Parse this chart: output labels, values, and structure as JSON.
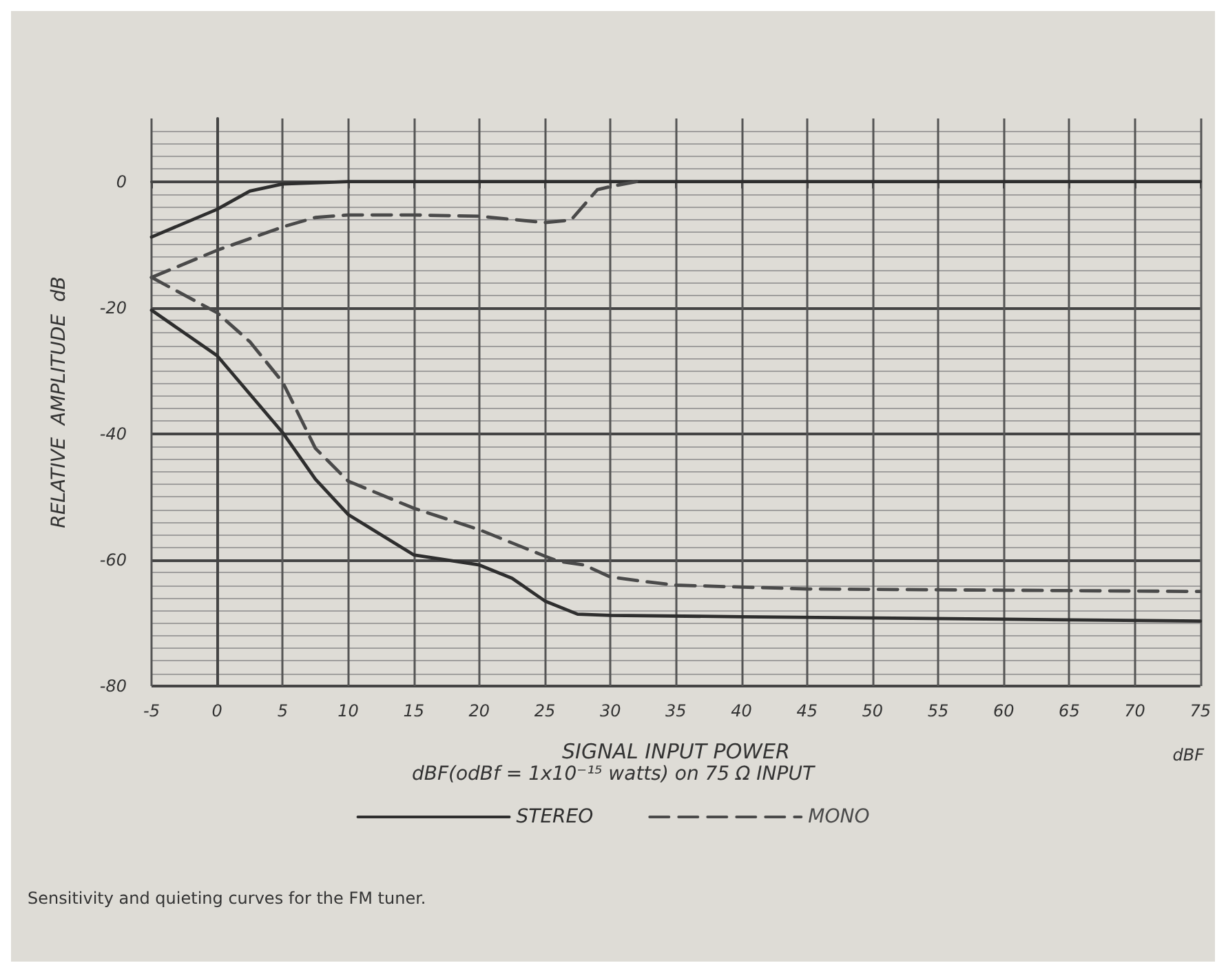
{
  "chart_data": {
    "type": "line",
    "xlabel": "SIGNAL INPUT POWER",
    "ylabel": "RELATIVE  AMPLITUDE  dB",
    "xlim": [
      -5,
      75
    ],
    "xticks": [
      -5,
      0,
      5,
      10,
      15,
      20,
      25,
      30,
      35,
      40,
      45,
      50,
      55,
      60,
      65,
      70,
      75
    ],
    "ylim": [
      -80,
      10
    ],
    "yticks": [
      -80,
      -60,
      -40,
      -20,
      0
    ],
    "grid": true,
    "legend": "bottom",
    "marker": "none",
    "annotations": [
      "dBF",
      "dBF(odBf = 1x10⁻¹⁵ watts) on 75 Ω INPUT",
      "Sensitivity and quieting curves for the FM tuner."
    ],
    "series": [
      {
        "name": "STEREO",
        "color": "#2e2e2e",
        "line_style": "solid",
        "x": [
          -5,
          0,
          2.5,
          5,
          10,
          20,
          30,
          40,
          50,
          60,
          75
        ],
        "values": [
          -8.8,
          -4.4,
          -1.5,
          -0.4,
          0,
          0,
          0,
          0,
          0,
          0,
          0
        ]
      },
      {
        "name": "MONO",
        "color": "#4a4a4a",
        "line_style": "dashed",
        "x": [
          -5,
          0,
          5,
          7.5,
          10,
          15,
          20,
          25,
          27,
          29,
          30,
          32
        ],
        "values": [
          -15.2,
          -10.9,
          -7.2,
          -5.7,
          -5.3,
          -5.3,
          -5.5,
          -6.5,
          -6.1,
          -1.3,
          -0.8,
          0
        ]
      },
      {
        "color": "#2e2e2e",
        "line_style": "solid",
        "x": [
          -5,
          0,
          5,
          7.5,
          10,
          15,
          20,
          22.5,
          25,
          27.5,
          30,
          40,
          50,
          60,
          75
        ],
        "values": [
          -20.4,
          -27.6,
          -39.8,
          -47.2,
          -52.8,
          -59.2,
          -60.8,
          -62.9,
          -66.5,
          -68.6,
          -68.8,
          -69,
          -69.2,
          -69.4,
          -69.7
        ]
      },
      {
        "color": "#4a4a4a",
        "line_style": "dashed",
        "x": [
          -5,
          0,
          2.5,
          5,
          7.5,
          10,
          15,
          20,
          25,
          26,
          28,
          30,
          32.5,
          35,
          45,
          60,
          75
        ],
        "values": [
          -15.2,
          -20.8,
          -25.4,
          -31.8,
          -42.3,
          -47.5,
          -51.8,
          -55.2,
          -59.4,
          -60.2,
          -60.8,
          -62.7,
          -63.4,
          -64,
          -64.6,
          -64.8,
          -65
        ]
      }
    ]
  }
}
